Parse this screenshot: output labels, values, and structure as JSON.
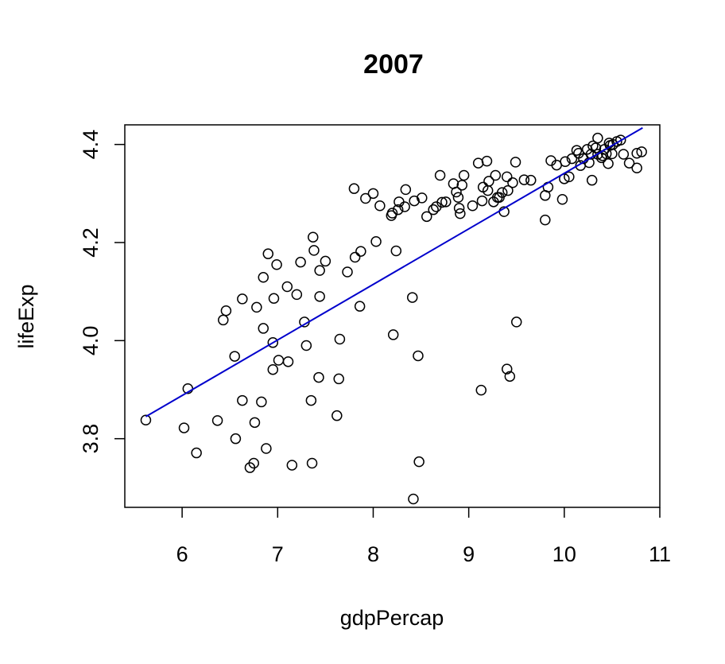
{
  "chart_data": {
    "type": "scatter",
    "title": "2007",
    "xlabel": "gdpPercap",
    "ylabel": "lifeExp",
    "xlim": [
      5.4,
      11.0
    ],
    "ylim": [
      3.66,
      4.44
    ],
    "xticks": [
      6,
      7,
      8,
      9,
      10,
      11
    ],
    "xtick_labels": [
      "6",
      "7",
      "8",
      "9",
      "10",
      "11"
    ],
    "yticks": [
      3.8,
      4.0,
      4.2,
      4.4
    ],
    "ytick_labels": [
      "3.8",
      "4.0",
      "4.2",
      "4.4"
    ],
    "grid": false,
    "series": [
      {
        "marker": "open-circle",
        "color": "#000000",
        "points": [
          [
            5.62,
            3.838
          ],
          [
            6.02,
            3.822
          ],
          [
            6.06,
            3.902
          ],
          [
            6.15,
            3.771
          ],
          [
            6.37,
            3.837
          ],
          [
            6.43,
            4.042
          ],
          [
            6.46,
            4.061
          ],
          [
            6.55,
            3.968
          ],
          [
            6.56,
            3.8
          ],
          [
            6.63,
            3.878
          ],
          [
            6.63,
            4.085
          ],
          [
            6.71,
            3.741
          ],
          [
            6.75,
            3.75
          ],
          [
            6.76,
            3.833
          ],
          [
            6.78,
            4.068
          ],
          [
            6.83,
            3.875
          ],
          [
            6.85,
            4.025
          ],
          [
            6.85,
            4.129
          ],
          [
            6.88,
            3.78
          ],
          [
            6.9,
            4.177
          ],
          [
            6.95,
            3.941
          ],
          [
            6.95,
            3.996
          ],
          [
            6.96,
            4.086
          ],
          [
            6.99,
            4.155
          ],
          [
            7.01,
            3.96
          ],
          [
            7.1,
            4.11
          ],
          [
            7.11,
            3.957
          ],
          [
            7.15,
            3.746
          ],
          [
            7.2,
            4.094
          ],
          [
            7.24,
            4.16
          ],
          [
            7.28,
            4.038
          ],
          [
            7.3,
            3.99
          ],
          [
            7.35,
            3.878
          ],
          [
            7.36,
            3.75
          ],
          [
            7.37,
            4.211
          ],
          [
            7.38,
            4.184
          ],
          [
            7.43,
            3.925
          ],
          [
            7.44,
            4.09
          ],
          [
            7.44,
            4.143
          ],
          [
            7.5,
            4.162
          ],
          [
            7.62,
            3.847
          ],
          [
            7.64,
            3.922
          ],
          [
            7.65,
            4.003
          ],
          [
            7.73,
            4.14
          ],
          [
            7.8,
            4.31
          ],
          [
            7.81,
            4.17
          ],
          [
            7.86,
            4.07
          ],
          [
            7.87,
            4.182
          ],
          [
            7.92,
            4.29
          ],
          [
            8.0,
            4.3
          ],
          [
            8.03,
            4.202
          ],
          [
            8.07,
            4.275
          ],
          [
            8.19,
            4.255
          ],
          [
            8.2,
            4.26
          ],
          [
            8.21,
            4.012
          ],
          [
            8.24,
            4.183
          ],
          [
            8.26,
            4.267
          ],
          [
            8.27,
            4.283
          ],
          [
            8.33,
            4.273
          ],
          [
            8.34,
            4.308
          ],
          [
            8.41,
            4.088
          ],
          [
            8.42,
            3.677
          ],
          [
            8.43,
            4.285
          ],
          [
            8.47,
            3.969
          ],
          [
            8.48,
            3.753
          ],
          [
            8.51,
            4.291
          ],
          [
            8.56,
            4.253
          ],
          [
            8.63,
            4.267
          ],
          [
            8.66,
            4.273
          ],
          [
            8.7,
            4.337
          ],
          [
            8.72,
            4.282
          ],
          [
            8.76,
            4.283
          ],
          [
            8.84,
            4.32
          ],
          [
            8.87,
            4.303
          ],
          [
            8.89,
            4.292
          ],
          [
            8.9,
            4.27
          ],
          [
            8.91,
            4.259
          ],
          [
            8.93,
            4.317
          ],
          [
            8.95,
            4.337
          ],
          [
            9.04,
            4.275
          ],
          [
            9.1,
            4.362
          ],
          [
            9.13,
            3.899
          ],
          [
            9.14,
            4.285
          ],
          [
            9.15,
            4.313
          ],
          [
            9.19,
            4.366
          ],
          [
            9.2,
            4.306
          ],
          [
            9.21,
            4.325
          ],
          [
            9.26,
            4.283
          ],
          [
            9.28,
            4.337
          ],
          [
            9.3,
            4.292
          ],
          [
            9.32,
            4.292
          ],
          [
            9.35,
            4.302
          ],
          [
            9.37,
            4.263
          ],
          [
            9.4,
            3.942
          ],
          [
            9.4,
            4.334
          ],
          [
            9.41,
            4.306
          ],
          [
            9.43,
            3.927
          ],
          [
            9.46,
            4.322
          ],
          [
            9.49,
            4.364
          ],
          [
            9.5,
            4.038
          ],
          [
            9.58,
            4.328
          ],
          [
            9.65,
            4.327
          ],
          [
            9.8,
            4.246
          ],
          [
            9.8,
            4.296
          ],
          [
            9.83,
            4.313
          ],
          [
            9.86,
            4.367
          ],
          [
            9.92,
            4.358
          ],
          [
            9.98,
            4.288
          ],
          [
            10.0,
            4.33
          ],
          [
            10.01,
            4.365
          ],
          [
            10.05,
            4.334
          ],
          [
            10.08,
            4.371
          ],
          [
            10.13,
            4.388
          ],
          [
            10.15,
            4.382
          ],
          [
            10.17,
            4.357
          ],
          [
            10.2,
            4.371
          ],
          [
            10.24,
            4.39
          ],
          [
            10.26,
            4.363
          ],
          [
            10.28,
            4.38
          ],
          [
            10.29,
            4.327
          ],
          [
            10.3,
            4.397
          ],
          [
            10.33,
            4.393
          ],
          [
            10.35,
            4.38
          ],
          [
            10.35,
            4.413
          ],
          [
            10.39,
            4.373
          ],
          [
            10.4,
            4.377
          ],
          [
            10.42,
            4.39
          ],
          [
            10.44,
            4.381
          ],
          [
            10.46,
            4.361
          ],
          [
            10.47,
            4.403
          ],
          [
            10.48,
            4.398
          ],
          [
            10.5,
            4.381
          ],
          [
            10.51,
            4.4
          ],
          [
            10.55,
            4.406
          ],
          [
            10.59,
            4.409
          ],
          [
            10.62,
            4.38
          ],
          [
            10.68,
            4.362
          ],
          [
            10.76,
            4.382
          ],
          [
            10.76,
            4.352
          ],
          [
            10.81,
            4.385
          ]
        ]
      }
    ],
    "regression_line": {
      "color": "#0000cc",
      "x": [
        5.62,
        10.82
      ],
      "y": [
        3.845,
        4.434
      ]
    }
  }
}
